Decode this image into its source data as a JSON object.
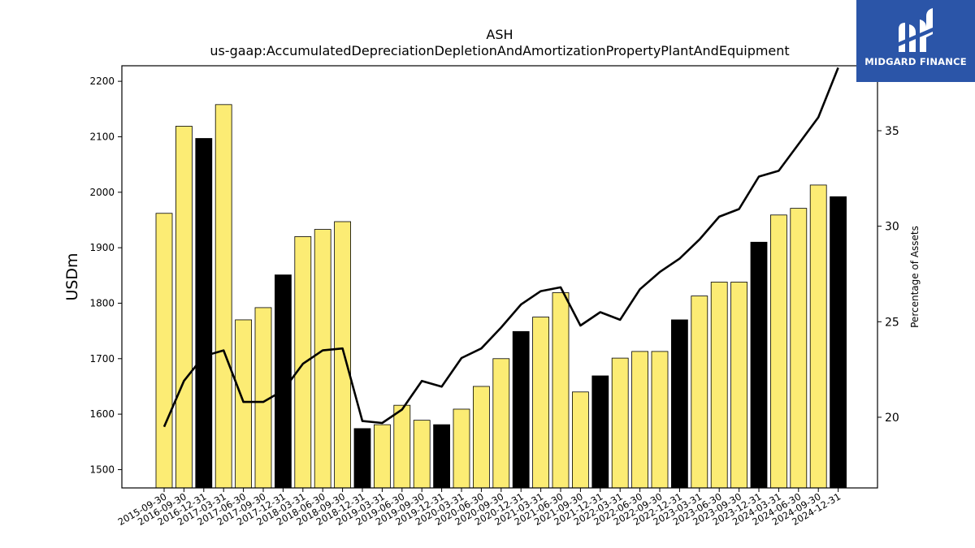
{
  "chart_data": {
    "type": "bar",
    "title": "ASH",
    "subtitle": "us-gaap:AccumulatedDepreciationDepletionAndAmortizationPropertyPlantAndEquipment",
    "ylabel": "USDm",
    "y2label": "Percentage of Assets",
    "ylim": [
      1467,
      2228
    ],
    "y2lim": [
      16.3,
      38.4
    ],
    "yticks": [
      1500,
      1600,
      1700,
      1800,
      1900,
      2000,
      2100,
      2200
    ],
    "y2ticks": [
      20,
      25,
      30,
      35
    ],
    "categories": [
      "2015-09-30",
      "2016-09-30",
      "2016-12-31",
      "2017-03-31",
      "2017-06-30",
      "2017-09-30",
      "2017-12-31",
      "2018-03-31",
      "2018-06-30",
      "2018-09-30",
      "2018-12-31",
      "2019-03-31",
      "2019-06-30",
      "2019-09-30",
      "2019-12-31",
      "2020-03-31",
      "2020-06-30",
      "2020-09-30",
      "2020-12-31",
      "2021-03-31",
      "2021-06-30",
      "2021-09-30",
      "2021-12-31",
      "2022-03-31",
      "2022-06-30",
      "2022-09-30",
      "2022-12-31",
      "2023-03-31",
      "2023-06-30",
      "2023-09-30",
      "2023-12-31",
      "2024-03-31",
      "2024-06-30",
      "2024-09-30",
      "2024-12-31"
    ],
    "series": [
      {
        "kind": "bar",
        "values": [
          1962,
          2119,
          2097,
          2158,
          1770,
          1792,
          1851,
          1920,
          1933,
          1947,
          1574,
          1581,
          1616,
          1589,
          1581,
          1609,
          1650,
          1700,
          1749,
          1775,
          1819,
          1640,
          1669,
          1701,
          1713,
          1713,
          1770,
          1813,
          1838,
          1838,
          1910,
          1959,
          1971,
          2013,
          1992
        ],
        "colors": [
          "#fcec74",
          "#fcec74",
          "#000000",
          "#fcec74",
          "#fcec74",
          "#fcec74",
          "#000000",
          "#fcec74",
          "#fcec74",
          "#fcec74",
          "#000000",
          "#fcec74",
          "#fcec74",
          "#fcec74",
          "#000000",
          "#fcec74",
          "#fcec74",
          "#fcec74",
          "#000000",
          "#fcec74",
          "#fcec74",
          "#fcec74",
          "#000000",
          "#fcec74",
          "#fcec74",
          "#fcec74",
          "#000000",
          "#fcec74",
          "#fcec74",
          "#fcec74",
          "#000000",
          "#fcec74",
          "#fcec74",
          "#fcec74",
          "#000000"
        ]
      },
      {
        "kind": "line",
        "axis": "right",
        "color": "#000000",
        "values": [
          19.5,
          21.9,
          23.2,
          23.5,
          20.8,
          20.8,
          21.4,
          22.8,
          23.5,
          23.6,
          19.8,
          19.7,
          20.4,
          21.9,
          21.6,
          23.1,
          23.6,
          24.7,
          25.9,
          26.6,
          26.8,
          24.8,
          25.5,
          25.1,
          26.7,
          27.6,
          28.3,
          29.3,
          30.5,
          30.9,
          32.6,
          32.9,
          34.3,
          35.7,
          38.3
        ]
      }
    ],
    "grid": false
  },
  "logo": {
    "text": "MIDGARD FINANCE",
    "background": "#2b55a8"
  }
}
